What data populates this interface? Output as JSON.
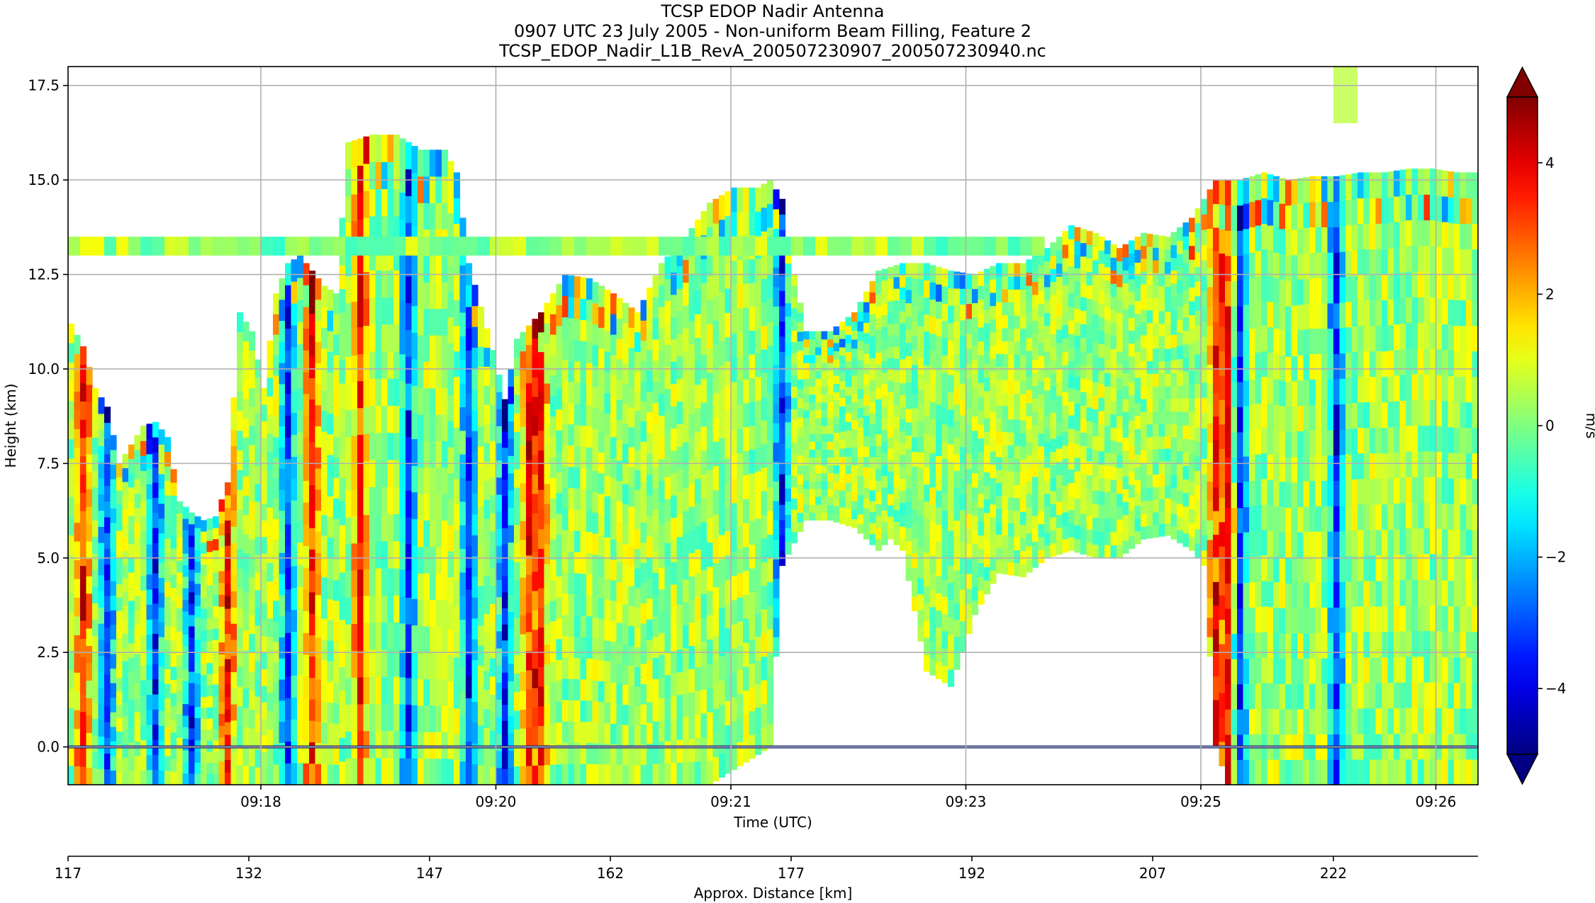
{
  "chart_data": {
    "type": "heatmap",
    "title_lines": [
      "TCSP EDOP Nadir Antenna",
      "0907 UTC 23 July 2005 - Non-uniform Beam Filling, Feature 2",
      "TCSP_EDOP_Nadir_L1B_RevA_200507230907_200507230940.nc"
    ],
    "xlabel": "Time (UTC)",
    "ylabel": "Height (km)",
    "secondary_xlabel": "Approx. Distance [km]",
    "colorbar_label": "m/s",
    "ylim": [
      -1.0,
      18.0
    ],
    "yticks": [
      0.0,
      2.5,
      5.0,
      7.5,
      10.0,
      12.5,
      15.0,
      17.5
    ],
    "ytick_labels": [
      "0.0",
      "2.5",
      "5.0",
      "7.5",
      "10.0",
      "12.5",
      "15.0",
      "17.5"
    ],
    "xlim_km": [
      117,
      234
    ],
    "time_tick_labels": [
      "09:18",
      "09:20",
      "09:21",
      "09:23",
      "09:25",
      "09:26"
    ],
    "time_tick_km": [
      133,
      152.5,
      172,
      191.5,
      211,
      230.5
    ],
    "distance_ticks": [
      117,
      132,
      147,
      162,
      177,
      192,
      207,
      222
    ],
    "distance_tick_labels": [
      "117",
      "132",
      "147",
      "162",
      "177",
      "192",
      "207",
      "222"
    ],
    "clim": [
      -5,
      5
    ],
    "colorbar_ticks": [
      -4,
      -2,
      0,
      2,
      4
    ],
    "colorbar_tick_labels": [
      "−4",
      "−2",
      "0",
      "2",
      "4"
    ],
    "colormap": "jet",
    "colorbar_extend": "both",
    "grid": true,
    "echo_top_km": [
      [
        117,
        11.2
      ],
      [
        118,
        10.6
      ],
      [
        119,
        9.5
      ],
      [
        120,
        9.0
      ],
      [
        121,
        7.5
      ],
      [
        122,
        8.0
      ],
      [
        123,
        8.5
      ],
      [
        124,
        8.6
      ],
      [
        125,
        8.2
      ],
      [
        126,
        6.5
      ],
      [
        127,
        6.2
      ],
      [
        128,
        6.0
      ],
      [
        129,
        6.1
      ],
      [
        130,
        7.0
      ],
      [
        131,
        11.5
      ],
      [
        132,
        11.0
      ],
      [
        133,
        9.5
      ],
      [
        134,
        12.0
      ],
      [
        135,
        12.8
      ],
      [
        136,
        13.0
      ],
      [
        137,
        12.6
      ],
      [
        138,
        12.2
      ],
      [
        139,
        12.0
      ],
      [
        140,
        16.0
      ],
      [
        142,
        16.2
      ],
      [
        144,
        16.2
      ],
      [
        146,
        15.8
      ],
      [
        148,
        15.8
      ],
      [
        149,
        15.2
      ],
      [
        150,
        12.8
      ],
      [
        152,
        10.5
      ],
      [
        153,
        9.2
      ],
      [
        154,
        10.8
      ],
      [
        156,
        11.5
      ],
      [
        158,
        12.5
      ],
      [
        160,
        12.4
      ],
      [
        162,
        12.0
      ],
      [
        164,
        11.5
      ],
      [
        166,
        12.8
      ],
      [
        168,
        13.5
      ],
      [
        170,
        14.4
      ],
      [
        172,
        14.8
      ],
      [
        174,
        14.8
      ],
      [
        175,
        15.0
      ],
      [
        176,
        14.5
      ],
      [
        177,
        12.5
      ],
      [
        178,
        11.0
      ],
      [
        180,
        11.0
      ],
      [
        182,
        11.5
      ],
      [
        184,
        12.6
      ],
      [
        186,
        12.8
      ],
      [
        188,
        12.8
      ],
      [
        190,
        12.6
      ],
      [
        192,
        12.5
      ],
      [
        194,
        12.8
      ],
      [
        196,
        12.8
      ],
      [
        198,
        13.2
      ],
      [
        200,
        13.8
      ],
      [
        202,
        13.6
      ],
      [
        204,
        13.2
      ],
      [
        206,
        13.6
      ],
      [
        208,
        13.5
      ],
      [
        210,
        14.0
      ],
      [
        212,
        15.0
      ],
      [
        214,
        15.0
      ],
      [
        216,
        15.2
      ],
      [
        218,
        15.0
      ],
      [
        220,
        15.1
      ],
      [
        222,
        15.1
      ],
      [
        224,
        15.2
      ],
      [
        226,
        15.2
      ],
      [
        228,
        15.3
      ],
      [
        230,
        15.3
      ],
      [
        232,
        15.2
      ],
      [
        234,
        15.2
      ]
    ],
    "echo_base_km": [
      [
        117,
        -1.0
      ],
      [
        170,
        -1.0
      ],
      [
        175,
        0.0
      ],
      [
        176,
        4.8
      ],
      [
        178,
        6.0
      ],
      [
        180,
        6.0
      ],
      [
        182,
        5.8
      ],
      [
        184,
        5.2
      ],
      [
        185,
        5.5
      ],
      [
        186,
        5.2
      ],
      [
        188,
        2.0
      ],
      [
        190,
        1.6
      ],
      [
        191,
        2.5
      ],
      [
        192,
        3.5
      ],
      [
        194,
        4.6
      ],
      [
        196,
        4.5
      ],
      [
        198,
        5.0
      ],
      [
        200,
        5.2
      ],
      [
        202,
        5.0
      ],
      [
        204,
        5.0
      ],
      [
        206,
        5.5
      ],
      [
        208,
        5.6
      ],
      [
        210,
        5.2
      ],
      [
        211,
        4.8
      ],
      [
        212,
        0.0
      ],
      [
        213,
        -1.0
      ],
      [
        234,
        -1.0
      ]
    ],
    "anvil_layer_km": {
      "x_range": [
        117,
        198
      ],
      "height_range": [
        13.0,
        13.5
      ]
    },
    "upper_fragment_km": {
      "x_range": [
        222,
        224
      ],
      "height_range": [
        16.5,
        18.0
      ]
    },
    "surface_km": 0.0,
    "strong_updraft_columns_km": [
      118,
      130,
      137,
      141,
      155,
      156,
      212,
      213
    ],
    "strong_downdraft_columns_km": [
      120,
      124,
      127,
      135,
      145,
      150,
      153,
      176,
      214,
      222
    ]
  }
}
